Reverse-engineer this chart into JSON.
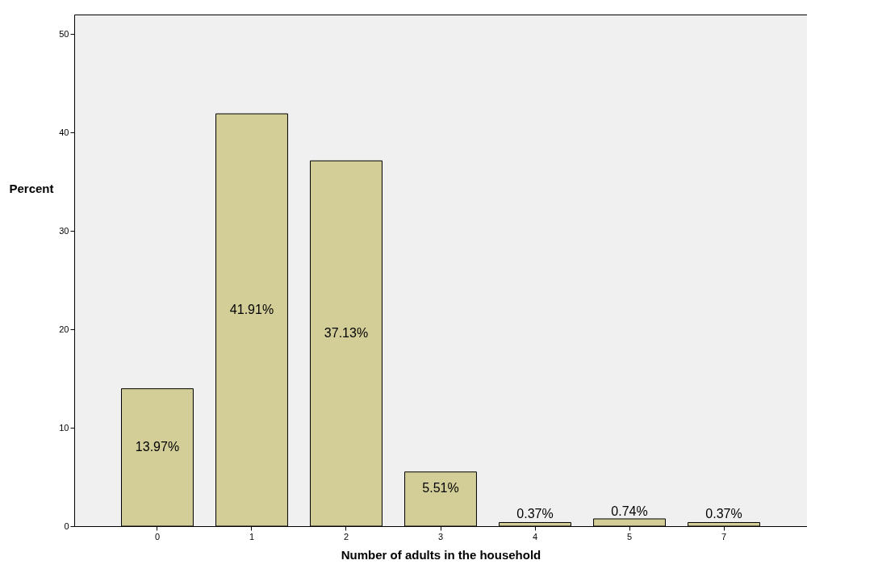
{
  "chart_data": {
    "type": "bar",
    "xlabel": "Number of adults in the household",
    "ylabel": "Percent",
    "categories": [
      "0",
      "1",
      "2",
      "3",
      "4",
      "5",
      "7"
    ],
    "values": [
      13.97,
      41.91,
      37.13,
      5.51,
      0.37,
      0.74,
      0.37
    ],
    "value_labels": [
      "13.97%",
      "41.91%",
      "37.13%",
      "5.51%",
      "0.37%",
      "0.74%",
      "0.37%"
    ],
    "color": "#d3ce97",
    "ylim": [
      0,
      52
    ],
    "yticks": [
      0,
      10,
      20,
      30,
      40,
      50
    ],
    "grid": false
  }
}
